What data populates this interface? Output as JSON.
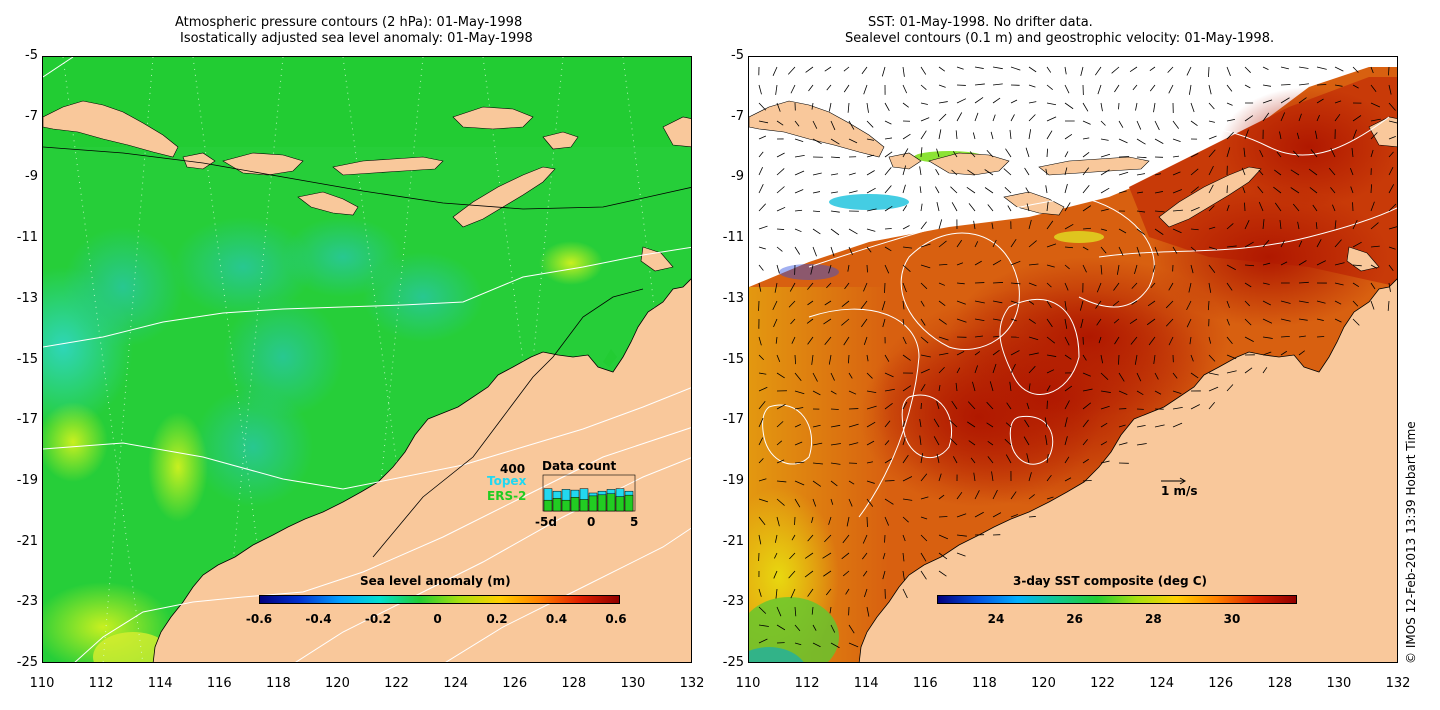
{
  "left_panel": {
    "title_line1": "Atmospheric pressure contours (2 hPa): 01-May-1998",
    "title_line2": "Isostatically adjusted sea level anomaly: 01-May-1998",
    "y_ticks": [
      "-5",
      "-7",
      "-9",
      "-11",
      "-13",
      "-15",
      "-17",
      "-19",
      "-21",
      "-23",
      "-25"
    ],
    "x_ticks": [
      "110",
      "112",
      "114",
      "116",
      "118",
      "120",
      "122",
      "124",
      "126",
      "128",
      "130",
      "132"
    ],
    "colorbar": {
      "label": "Sea level anomaly (m)",
      "ticks": [
        "-0.6",
        "-0.4",
        "-0.2",
        "0",
        "0.2",
        "0.4",
        "0.6"
      ]
    },
    "data_count": {
      "title": "Data count",
      "max_label": "400",
      "topex_label": "Topex",
      "ers_label": "ERS-2",
      "x_ticks": [
        "-5d",
        "0",
        "5"
      ],
      "topex_color": "#22d8f0",
      "ers_color": "#22cc22",
      "topex_fraction": [
        0.62,
        0.55,
        0.6,
        0.58,
        0.62,
        0.5,
        0.55,
        0.6,
        0.62,
        0.55
      ],
      "ers_fraction": [
        0.3,
        0.35,
        0.3,
        0.38,
        0.32,
        0.42,
        0.45,
        0.48,
        0.4,
        0.44
      ]
    }
  },
  "right_panel": {
    "title_line1": "SST: 01-May-1998. No drifter data.",
    "title_line2": "Sealevel contours (0.1 m) and geostrophic velocity: 01-May-1998.",
    "y_ticks": [
      "-5",
      "-7",
      "-9",
      "-11",
      "-13",
      "-15",
      "-17",
      "-19",
      "-21",
      "-23",
      "-25"
    ],
    "x_ticks": [
      "110",
      "112",
      "114",
      "116",
      "118",
      "120",
      "122",
      "124",
      "126",
      "128",
      "130",
      "132"
    ],
    "colorbar": {
      "label": "3-day SST composite (deg C)",
      "ticks": [
        "24",
        "26",
        "28",
        "30"
      ]
    },
    "velocity_label": "1 m/s"
  },
  "credit": "© IMOS 12-Feb-2013 13:39 Hobart Time",
  "colors": {
    "land": "#f9c89b",
    "ocean_green": "#22cc33",
    "sst_red": "#b81c00",
    "sst_orange": "#d85a10"
  }
}
